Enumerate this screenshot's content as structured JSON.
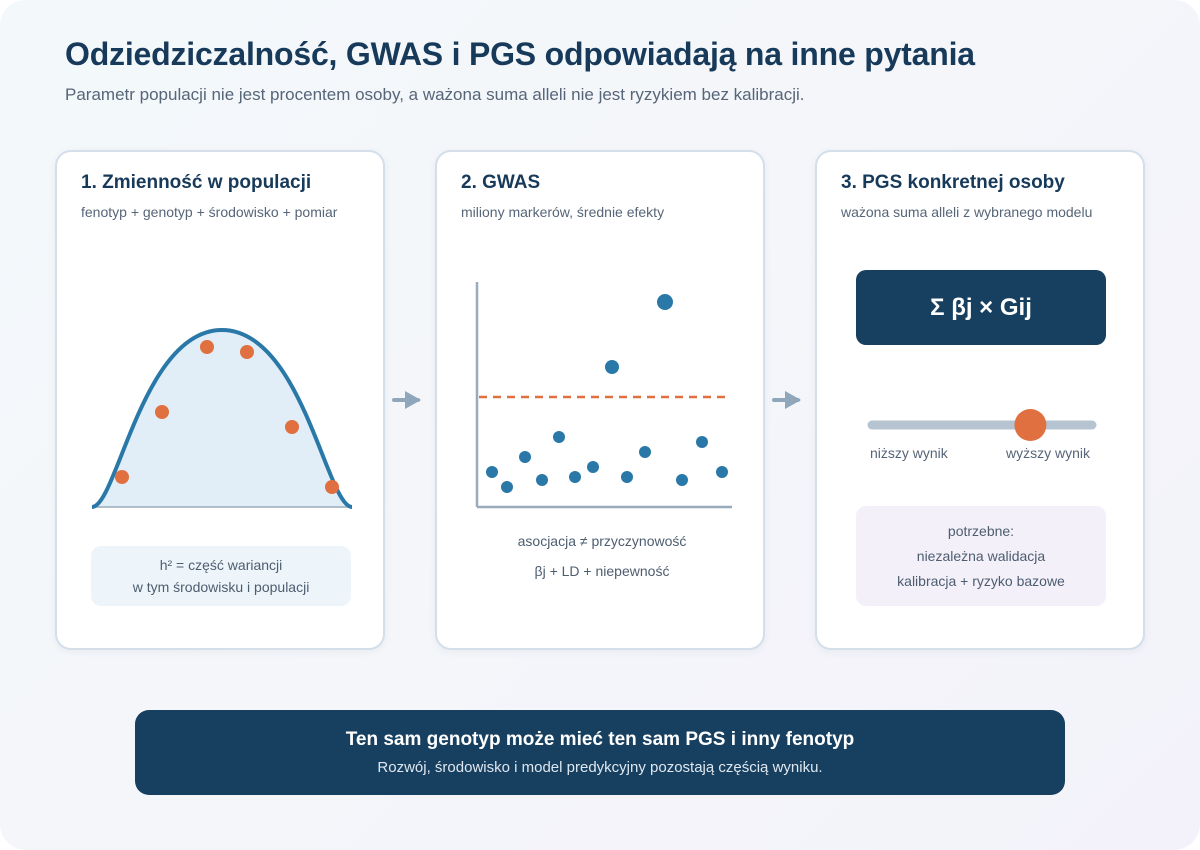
{
  "header": {
    "title": "Odziedziczalność, GWAS i PGS odpowiadają na inne pytania",
    "subtitle": "Parametr populacji nie jest procentem osoby, a ważona suma alleli nie jest ryzykiem bez kalibracji."
  },
  "cards": [
    {
      "title": "1. Zmienność w populacji",
      "subtitle": "fenotyp + genotyp + środowisko + pomiar",
      "note_lines": [
        "h² = część wariancji",
        "w tym środowisku i populacji"
      ]
    },
    {
      "title": "2. GWAS",
      "subtitle": "miliony markerów, średnie efekty",
      "captions": [
        "asocjacja ≠ przyczynowość",
        "βj + LD + niepewność"
      ]
    },
    {
      "title": "3. PGS konkretnej osoby",
      "subtitle": "ważona suma alleli z wybranego modelu",
      "formula": "Σ βj × Gij",
      "slider": {
        "low_label": "niższy wynik",
        "high_label": "wyższy wynik",
        "value": 0.72
      },
      "note_lines": [
        "potrzebne:",
        "niezależna walidacja",
        "kalibracja + ryzyko bazowe"
      ]
    }
  ],
  "banner": {
    "title": "Ten sam genotyp może mieć ten sam PGS i inny fenotyp",
    "subtitle": "Rozwój, środowisko i model predykcyjny pozostają częścią wyniku."
  },
  "colors": {
    "navy": "#173f5f",
    "curve_blue": "#2a78a8",
    "point_orange": "#e07040",
    "axis_gray": "#9aabbc",
    "arrow_gray": "#90a6ba"
  }
}
